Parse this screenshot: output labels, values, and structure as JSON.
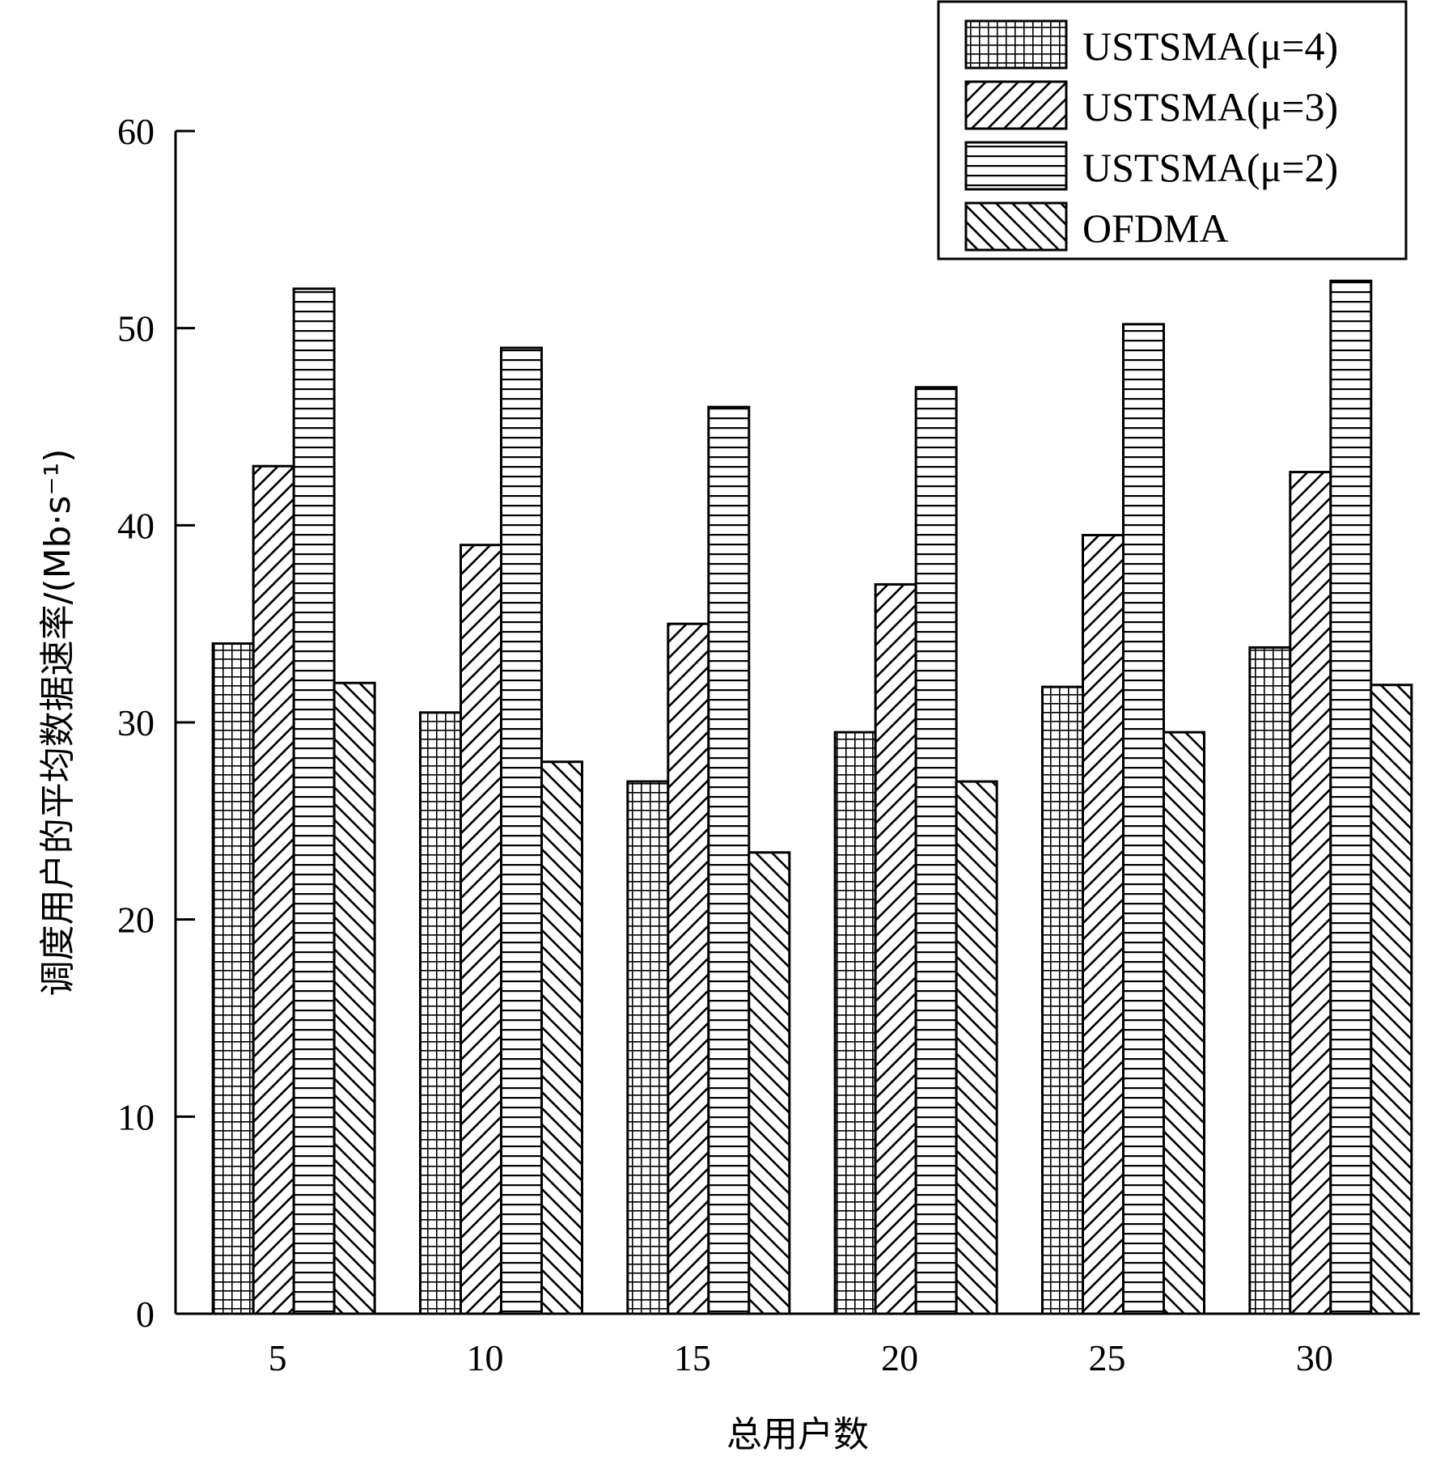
{
  "chart_data": {
    "type": "bar",
    "title": "",
    "xlabel": "总用户数",
    "ylabel": "调度用户的平均数据速率/(Mb·s⁻¹)",
    "categories": [
      "5",
      "10",
      "15",
      "20",
      "25",
      "30"
    ],
    "series": [
      {
        "name": "USTSMA(μ=4)",
        "pattern": "grid",
        "values": [
          34,
          30.5,
          27,
          29.5,
          31.8,
          33.8
        ]
      },
      {
        "name": "USTSMA(μ=3)",
        "pattern": "diag-up",
        "values": [
          43,
          39,
          35,
          37,
          39.5,
          42.7
        ]
      },
      {
        "name": "USTSMA(μ=2)",
        "pattern": "horizontal",
        "values": [
          52,
          49,
          46,
          47,
          50.2,
          52.4
        ]
      },
      {
        "name": "OFDMA",
        "pattern": "diag-down",
        "values": [
          32,
          28,
          23.4,
          27,
          29.5,
          31.9
        ]
      }
    ],
    "yticks": [
      0,
      10,
      20,
      30,
      40,
      50,
      60
    ],
    "ylim": [
      0,
      60
    ],
    "legend_position": "top-right",
    "grid": false
  }
}
